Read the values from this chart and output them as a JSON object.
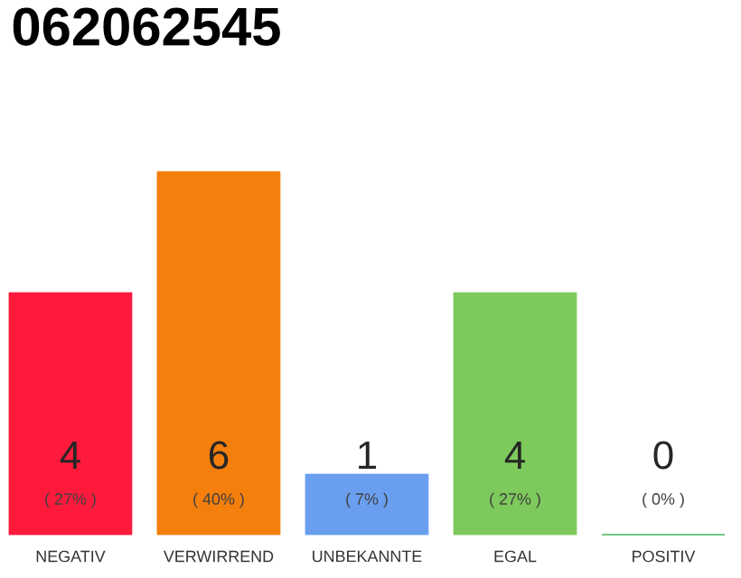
{
  "chart_data": {
    "type": "bar",
    "title": "062062545",
    "categories": [
      "NEGATIV",
      "VERWIRREND",
      "UNBEKANNTE",
      "EGAL",
      "POSITIV"
    ],
    "values": [
      4,
      6,
      1,
      4,
      0
    ],
    "colors": [
      "#ff1a3c",
      "#f47f0c",
      "#6a9ff0",
      "#7dc95b",
      "#2aa845"
    ],
    "value_labels": [
      "4",
      "6",
      "1",
      "4",
      "0"
    ],
    "annotations": [
      "( 27% )",
      "( 40% )",
      "( 7% )",
      "( 27% )",
      "( 0% )"
    ]
  }
}
